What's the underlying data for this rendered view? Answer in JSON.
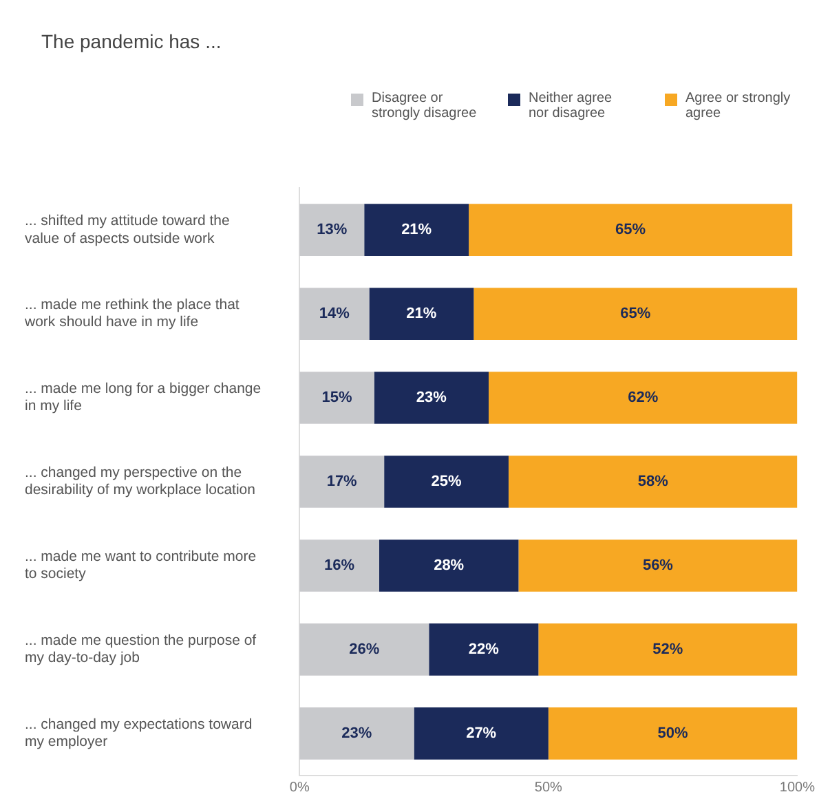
{
  "chart_data": {
    "type": "bar",
    "orientation": "horizontal",
    "stacked": true,
    "title": "The pandemic has ...",
    "categories": [
      "... shifted my attitude toward the value of aspects outside work",
      "... made me rethink the place that work should have in my life",
      "... made me long for a bigger change in my life",
      "... changed my perspective on the desirability of my workplace location",
      "... made me want to contribute more to society",
      "... made me question the purpose of my day-to-day job",
      "... changed my expectations toward my employer"
    ],
    "series": [
      {
        "name": "Disagree or strongly disagree",
        "color": "#c8c9cc",
        "values": [
          13,
          14,
          15,
          17,
          16,
          26,
          23
        ],
        "value_labels": [
          "13%",
          "14%",
          "15%",
          "17%",
          "16%",
          "26%",
          "23%"
        ]
      },
      {
        "name": "Neither agree nor disagree",
        "color": "#1b2a5a",
        "values": [
          21,
          21,
          23,
          25,
          28,
          22,
          27
        ],
        "value_labels": [
          "21%",
          "21%",
          "23%",
          "25%",
          "28%",
          "22%",
          "27%"
        ]
      },
      {
        "name": "Agree or strongly agree",
        "color": "#f7a823",
        "values": [
          65,
          65,
          62,
          58,
          56,
          52,
          50
        ],
        "value_labels": [
          "65%",
          "65%",
          "62%",
          "58%",
          "56%",
          "52%",
          "50%"
        ]
      }
    ],
    "xlim": [
      0,
      100
    ],
    "xticks": [
      {
        "value": 0,
        "label": "0%"
      },
      {
        "value": 50,
        "label": "50%"
      },
      {
        "value": 100,
        "label": "100%"
      }
    ],
    "grid": false,
    "legend": "top right"
  }
}
